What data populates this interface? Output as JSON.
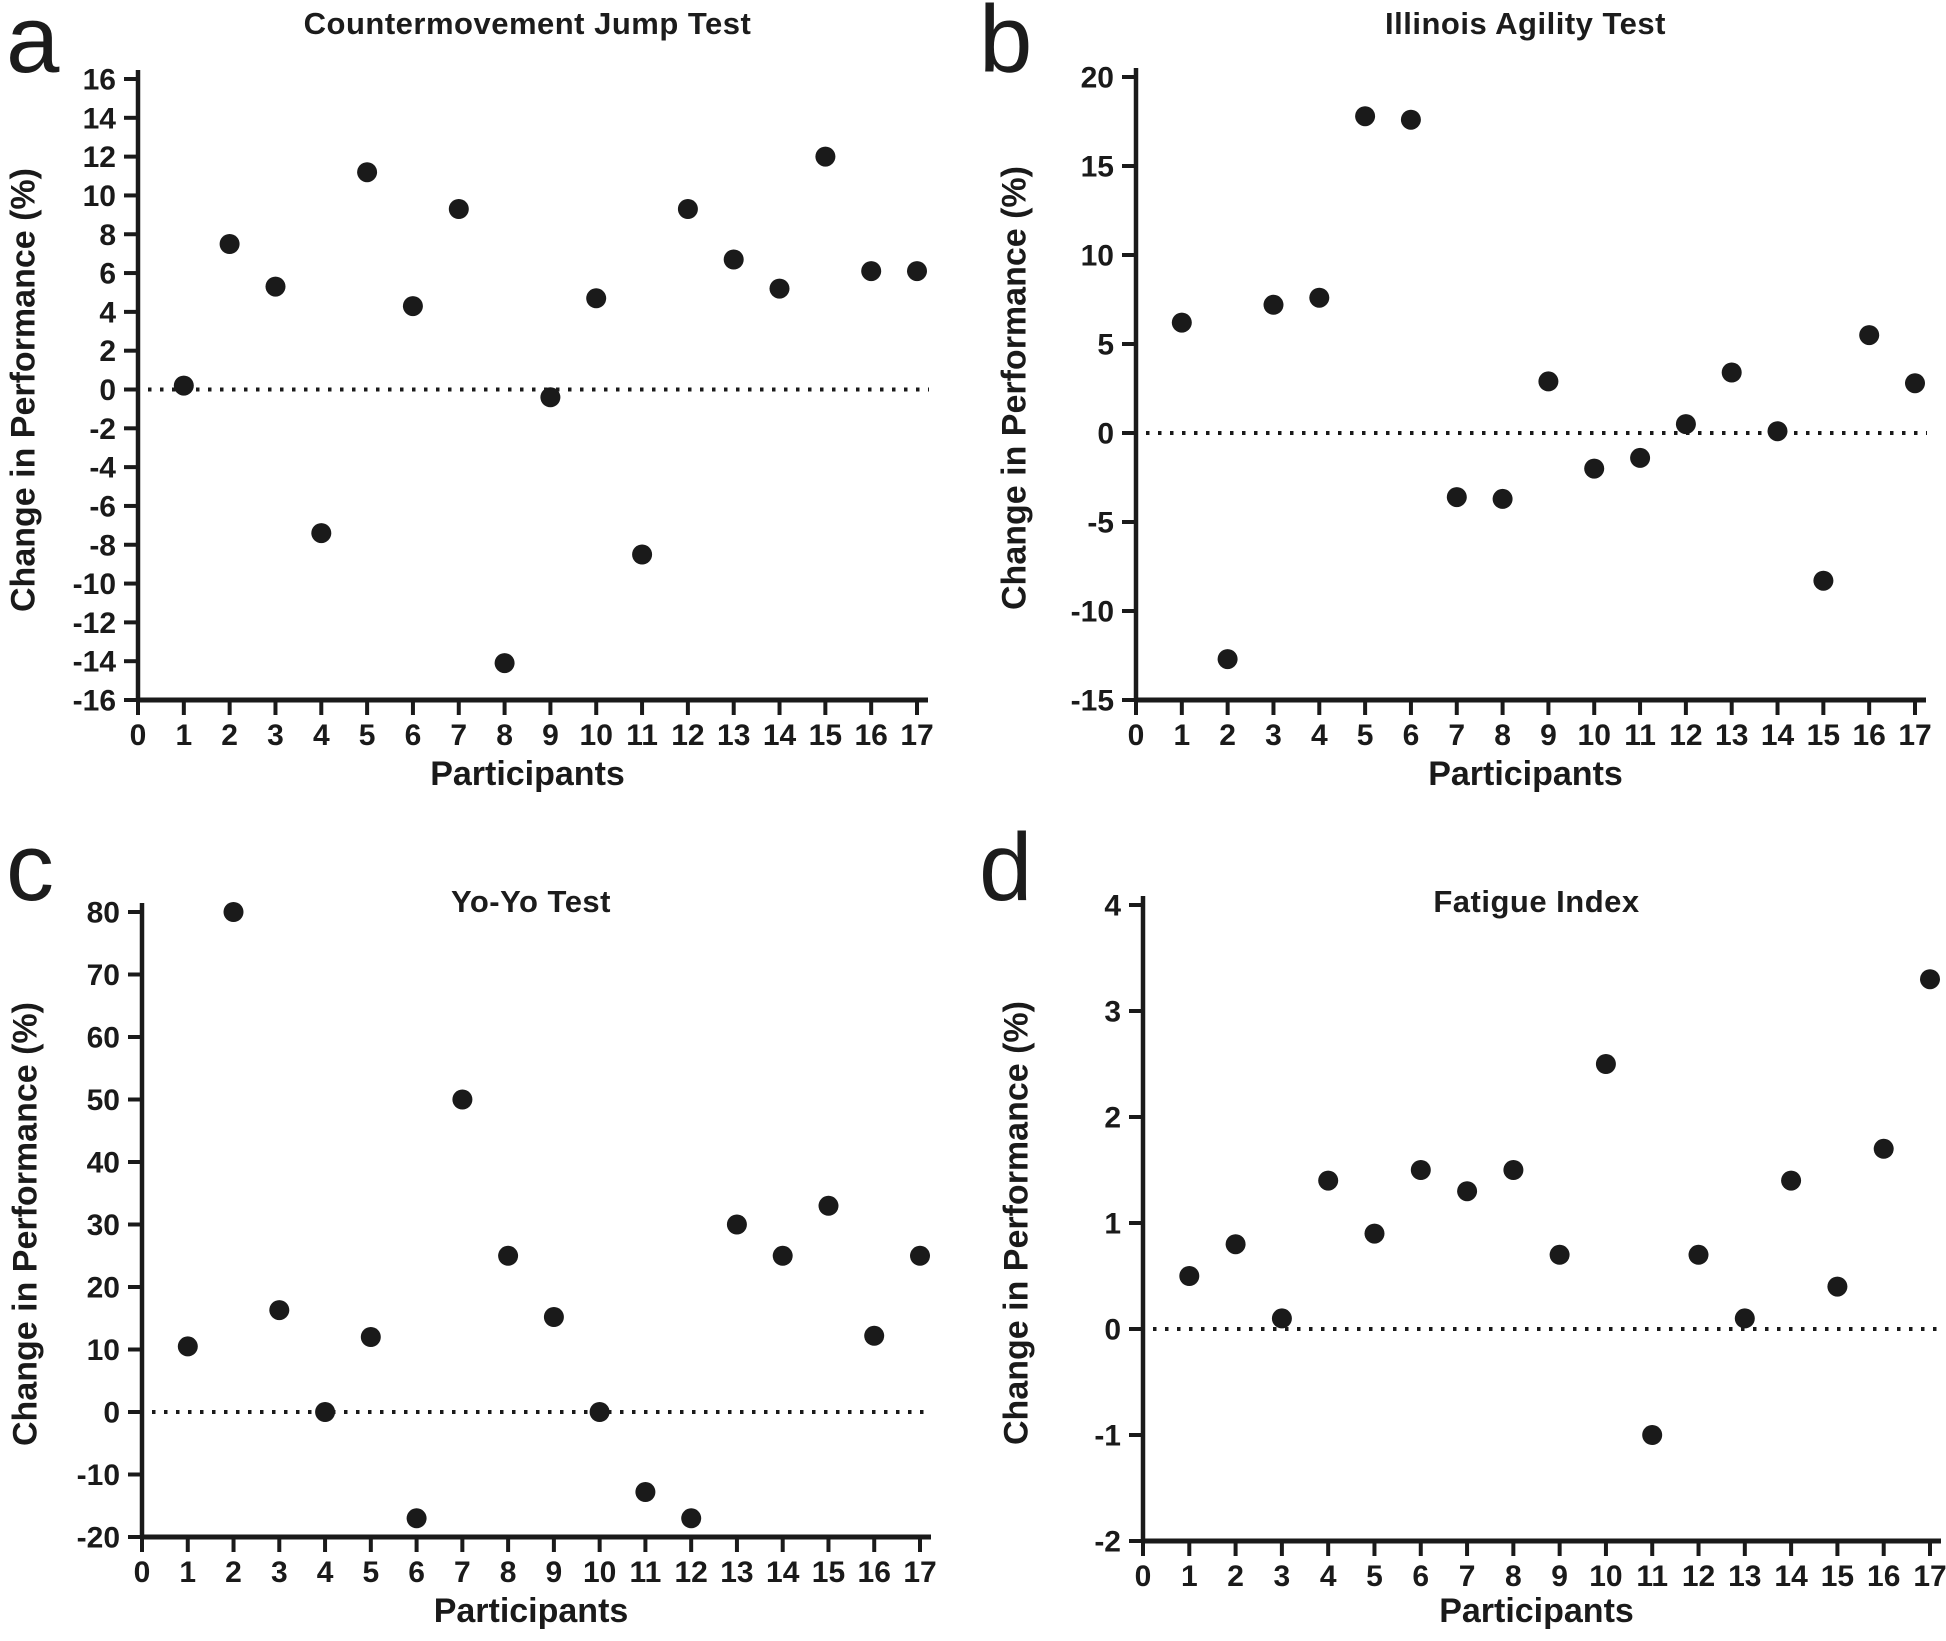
{
  "figure": {
    "background_color": "#ffffff",
    "axis_color": "#1a1a1a",
    "point_color": "#1a1a1a",
    "text_color": "#1a1a1a"
  },
  "chart_data": [
    {
      "panel_label": "a",
      "type": "scatter",
      "title": "Countermovement Jump Test",
      "xlabel": "Participants",
      "ylabel": "Change in Performance (%)",
      "x": [
        1,
        2,
        3,
        4,
        5,
        6,
        7,
        8,
        9,
        10,
        11,
        12,
        13,
        14,
        15,
        16,
        17
      ],
      "y": [
        0.2,
        7.5,
        5.3,
        -7.4,
        11.2,
        4.3,
        9.3,
        -14.1,
        -0.4,
        4.7,
        -8.5,
        9.3,
        6.7,
        5.2,
        12.0,
        6.1,
        6.1
      ],
      "xlim": [
        0,
        17
      ],
      "xtick_step": 1,
      "ylim": [
        -16,
        16
      ],
      "ytick_step": 2,
      "zero_line": "dotted",
      "grid": "off",
      "legend": "none"
    },
    {
      "panel_label": "b",
      "type": "scatter",
      "title": "Illinois Agility Test",
      "xlabel": "Participants",
      "ylabel": "Change in Performance (%)",
      "x": [
        1,
        2,
        3,
        4,
        5,
        6,
        7,
        8,
        9,
        10,
        11,
        12,
        13,
        14,
        15,
        16,
        17
      ],
      "y": [
        6.2,
        -12.7,
        7.2,
        7.6,
        17.8,
        17.6,
        -3.6,
        -3.7,
        2.9,
        -2.0,
        -1.4,
        0.5,
        3.4,
        0.1,
        -8.3,
        5.5,
        2.8
      ],
      "xlim": [
        0,
        17
      ],
      "xtick_step": 1,
      "ylim": [
        -15,
        20
      ],
      "ytick_step": 5,
      "zero_line": "dotted",
      "grid": "off",
      "legend": "none"
    },
    {
      "panel_label": "c",
      "type": "scatter",
      "title": "Yo-Yo Test",
      "xlabel": "Participants",
      "ylabel": "Change in Performance (%)",
      "x": [
        1,
        2,
        3,
        4,
        5,
        6,
        7,
        8,
        9,
        10,
        11,
        12,
        13,
        14,
        15,
        16,
        17
      ],
      "y": [
        10.5,
        80,
        16.3,
        0,
        12.0,
        -17,
        50,
        25,
        15.2,
        0,
        -12.8,
        -17,
        30,
        25,
        33,
        12.2,
        25
      ],
      "xlim": [
        0,
        17
      ],
      "xtick_step": 1,
      "ylim": [
        -20,
        80
      ],
      "ytick_step": 10,
      "zero_line": "dotted",
      "grid": "off",
      "legend": "none"
    },
    {
      "panel_label": "d",
      "type": "scatter",
      "title": "Fatigue Index",
      "xlabel": "Participants",
      "ylabel": "Change in Performance (%)",
      "x": [
        1,
        2,
        3,
        4,
        5,
        6,
        7,
        8,
        9,
        10,
        11,
        12,
        13,
        14,
        15,
        16,
        17
      ],
      "y": [
        0.5,
        0.8,
        0.1,
        1.4,
        0.9,
        1.5,
        1.3,
        1.5,
        0.7,
        2.5,
        -1.0,
        0.7,
        0.1,
        1.4,
        0.4,
        1.7,
        3.3
      ],
      "xlim": [
        0,
        17
      ],
      "xtick_step": 1,
      "ylim": [
        -2,
        4
      ],
      "ytick_step": 1,
      "zero_line": "dotted",
      "grid": "off",
      "legend": "none"
    }
  ]
}
